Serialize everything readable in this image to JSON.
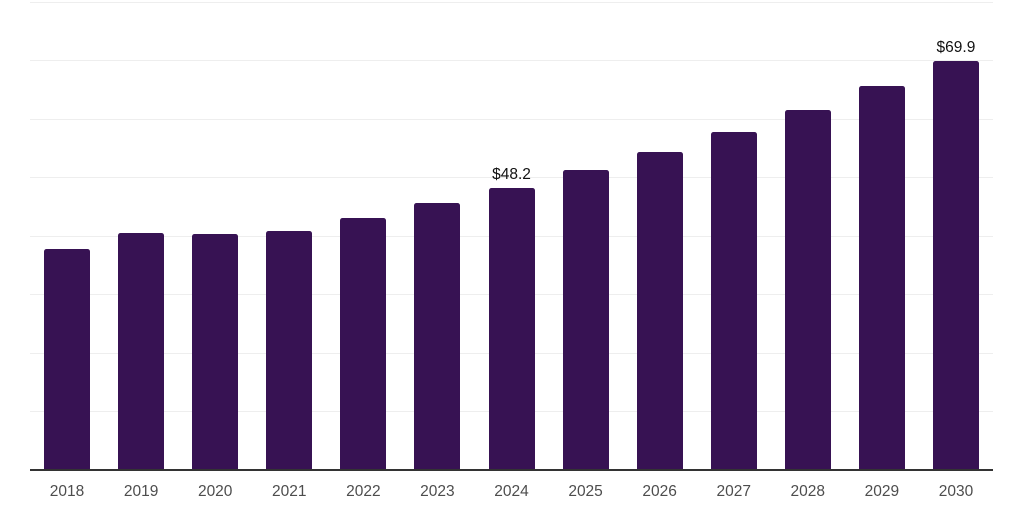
{
  "chart_data": {
    "type": "bar",
    "title": "",
    "xlabel": "",
    "ylabel": "",
    "categories": [
      "2018",
      "2019",
      "2020",
      "2021",
      "2022",
      "2023",
      "2024",
      "2025",
      "2026",
      "2027",
      "2028",
      "2029",
      "2030"
    ],
    "values": [
      37.7,
      40.4,
      40.3,
      40.8,
      43.1,
      45.6,
      48.2,
      51.2,
      54.3,
      57.8,
      61.5,
      65.7,
      69.9
    ],
    "annotations": [
      {
        "category": "2024",
        "text": "$48.2"
      },
      {
        "category": "2030",
        "text": "$69.9"
      }
    ],
    "ylim": [
      0,
      80
    ],
    "grid_step": 10,
    "grid": true,
    "legend": false,
    "colors": {
      "bar": "#371253",
      "axis_line": "#333333",
      "gridline": "#eeeeee",
      "tick_label": "#4d4d4d",
      "data_label": "#111111",
      "background": "#ffffff"
    }
  }
}
